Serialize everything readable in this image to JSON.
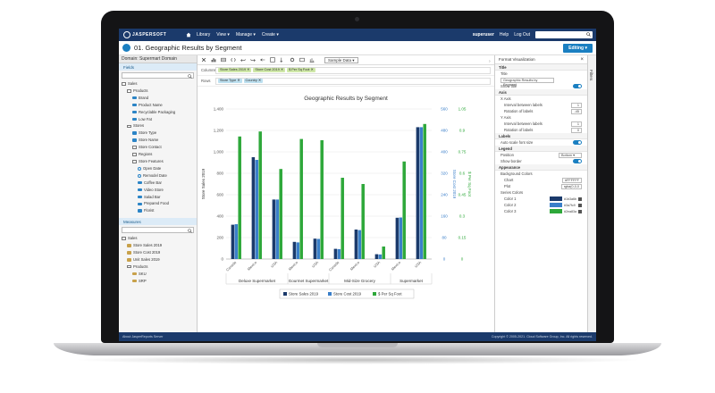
{
  "topnav": {
    "logo": "JASPERSOFT",
    "items": [
      "Library",
      "View ▾",
      "Manage ▾",
      "Create ▾"
    ],
    "user": "superuser",
    "help": "Help",
    "logout": "Log Out"
  },
  "titlebar": {
    "title": "01. Geographic Results by Segment",
    "edit": "Editing ▾"
  },
  "leftpanel": {
    "domain": "Domain: Supermart Domain",
    "fields_label": "Fields",
    "fields": [
      {
        "label": "Sales",
        "type": "folder",
        "indent": 0
      },
      {
        "label": "Products",
        "type": "folder",
        "indent": 1
      },
      {
        "label": "Brand",
        "type": "dim",
        "indent": 2
      },
      {
        "label": "Product Name",
        "type": "dim",
        "indent": 2
      },
      {
        "label": "Recyclable Packaging",
        "type": "dim",
        "indent": 2
      },
      {
        "label": "Low Fat",
        "type": "dim",
        "indent": 2
      },
      {
        "label": "Stores",
        "type": "folder",
        "indent": 1
      },
      {
        "label": "Store Type",
        "type": "dim",
        "indent": 2
      },
      {
        "label": "Store Name",
        "type": "dim",
        "indent": 2
      },
      {
        "label": "Store Contact",
        "type": "folder",
        "indent": 2
      },
      {
        "label": "Regions",
        "type": "folder",
        "indent": 2
      },
      {
        "label": "Store Features",
        "type": "folder",
        "indent": 2
      },
      {
        "label": "Open Date",
        "type": "clock",
        "indent": 3
      },
      {
        "label": "Remodel Date",
        "type": "clock",
        "indent": 3
      },
      {
        "label": "Coffee Bar",
        "type": "dim",
        "indent": 3
      },
      {
        "label": "Video Store",
        "type": "dim",
        "indent": 3
      },
      {
        "label": "Salad Bar",
        "type": "dim",
        "indent": 3
      },
      {
        "label": "Prepared Food",
        "type": "dim",
        "indent": 3
      },
      {
        "label": "Florist",
        "type": "dim",
        "indent": 3
      }
    ],
    "measures_label": "Measures",
    "measures": [
      {
        "label": "Sales",
        "type": "folder",
        "indent": 0
      },
      {
        "label": "Store Sales 2019",
        "type": "meas",
        "indent": 1
      },
      {
        "label": "Store Cost 2019",
        "type": "meas",
        "indent": 1
      },
      {
        "label": "Unit Sales 2019",
        "type": "meas",
        "indent": 1
      },
      {
        "label": "Products",
        "type": "folder",
        "indent": 1
      },
      {
        "label": "SKU",
        "type": "meas",
        "indent": 2
      },
      {
        "label": "SRP",
        "type": "meas",
        "indent": 2
      }
    ]
  },
  "toolbar": {
    "sample": "Sample Data ▾"
  },
  "columns": {
    "label": "Columns",
    "pills": [
      "Store Sales 2019 ✕",
      "Store Cost 2019 ✕",
      "$ Per Sq Foot ✕"
    ]
  },
  "rows": {
    "label": "Rows",
    "pills": [
      "Store Type ✕",
      "Country ✕"
    ]
  },
  "chart_data": {
    "type": "bar",
    "title": "Geographic Results by Segment",
    "ylabel": "Store Sales 2019",
    "y2label": "Store Cost 2019",
    "y3label": "$ Per Sq Foot",
    "ylim": [
      0,
      1400
    ],
    "y_ticks": [
      "0",
      "200",
      "400",
      "600",
      "800",
      "1,000",
      "1,200",
      "1,400"
    ],
    "y2_ticks": [
      "0",
      "80",
      "160",
      "240",
      "320",
      "400",
      "480",
      "560"
    ],
    "y3_ticks": [
      "0",
      "0.15",
      "0.3",
      "0.45",
      "0.6",
      "0.75",
      "0.9",
      "1.05"
    ],
    "categories": [
      "Canada",
      "Mexico",
      "USA",
      "Mexico",
      "USA",
      "Canada",
      "Mexico",
      "USA",
      "Mexico",
      "USA"
    ],
    "groups": [
      {
        "label": "Deluxe Supermarket",
        "count": 3
      },
      {
        "label": "Gourmet Supermarket",
        "count": 2
      },
      {
        "label": "Mid-Size Grocery",
        "count": 3
      },
      {
        "label": "Supermarket",
        "count": 2
      }
    ],
    "series": [
      {
        "name": "Store Sales 2019",
        "color": "#1b3a6b",
        "values": [
          320,
          950,
          555,
          160,
          190,
          95,
          275,
          45,
          385,
          1230
        ]
      },
      {
        "name": "Store Cost 2019",
        "color": "#3a7fc9",
        "values": [
          130,
          370,
          222,
          62,
          75,
          37,
          108,
          17,
          155,
          492
        ]
      },
      {
        "name": "$ Per Sq Foot",
        "color": "#2ea83a",
        "values": [
          0.98,
          1.02,
          0.72,
          0.96,
          0.95,
          0.65,
          0.6,
          0.1,
          0.78,
          1.08
        ]
      }
    ],
    "secondary_max": 560,
    "tertiary_max": 1.2,
    "legend": "bottom"
  },
  "rightpanel": {
    "header": "Format Visualization",
    "title_sec": "Title",
    "title_label": "Title",
    "title_value": "Geographic Results by Segment",
    "show_title": "Show title",
    "axis_sec": "Axis",
    "xaxis": "X Axis",
    "x_interval_label": "Interval between labels",
    "x_interval": "1",
    "x_rotation_label": "Rotation of labels",
    "x_rotation": "-45",
    "yaxis": "Y Axis",
    "y_interval_label": "Interval between labels",
    "y_interval": "1",
    "y_rotation_label": "Rotation of labels",
    "y_rotation": "0",
    "labels_sec": "Labels",
    "auto_scale": "Auto scale font size",
    "legend_sec": "Legend",
    "position_label": "Position",
    "position_value": "Bottom ▾",
    "show_border": "Show border",
    "appearance_sec": "Appearance",
    "bg_colors": "Background Colors",
    "chart_label": "Chart",
    "chart_value": "#FFFFFF",
    "plot_label": "Plot",
    "plot_value": "rgba(0,0,0",
    "series_colors": "Series Colors",
    "colors": [
      {
        "label": "Color 1",
        "hex": "#1b3a6b",
        "text": "#1b3a6b"
      },
      {
        "label": "Color 2",
        "hex": "#3a7fc9",
        "text": "#3a7fc9"
      },
      {
        "label": "Color 3",
        "hex": "#2ea83a",
        "text": "#2ea83a"
      }
    ]
  },
  "filters_label": "Filters",
  "footer": {
    "left": "About JasperReports Server",
    "right": "Copyright © 2005-2021. Cloud Software Group, Inc. All rights reserved."
  }
}
